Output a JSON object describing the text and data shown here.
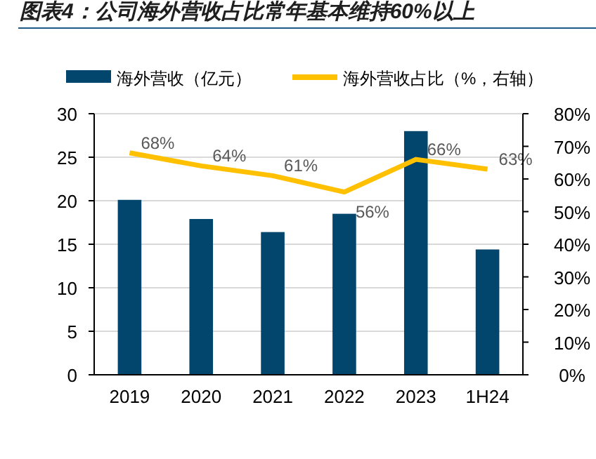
{
  "chart_data": {
    "type": "bar",
    "title": "图表4：公司海外营收占比常年基本维持60%以上",
    "categories": [
      "2019",
      "2020",
      "2021",
      "2022",
      "2023",
      "1H24"
    ],
    "series": [
      {
        "name": "海外营收（亿元）",
        "color": "#02466e",
        "values": [
          20.1,
          17.9,
          16.4,
          18.5,
          28.0,
          14.4
        ]
      },
      {
        "name": "海外营收占比（%，右轴）",
        "type": "line",
        "axis": "y2",
        "color": "#ffc000",
        "values": [
          68,
          64,
          61,
          56,
          66,
          63
        ],
        "value_labels": [
          "68%",
          "64%",
          "61%",
          "56%",
          "66%",
          "63%"
        ]
      }
    ],
    "ylim": [
      0,
      30
    ],
    "yticks": [
      0,
      5,
      10,
      15,
      20,
      25,
      30
    ],
    "y2lim": [
      0,
      80
    ],
    "y2ticks": [
      {
        "value": 0,
        "label": "0%"
      },
      {
        "value": 10,
        "label": "10%"
      },
      {
        "value": 20,
        "label": "20%"
      },
      {
        "value": 30,
        "label": "30%"
      },
      {
        "value": 40,
        "label": "40%"
      },
      {
        "value": 50,
        "label": "50%"
      },
      {
        "value": 60,
        "label": "60%"
      },
      {
        "value": 70,
        "label": "70%"
      },
      {
        "value": 80,
        "label": "80%"
      }
    ],
    "grid": "y",
    "legend": "top",
    "marker": "none",
    "line_style": "solid"
  }
}
